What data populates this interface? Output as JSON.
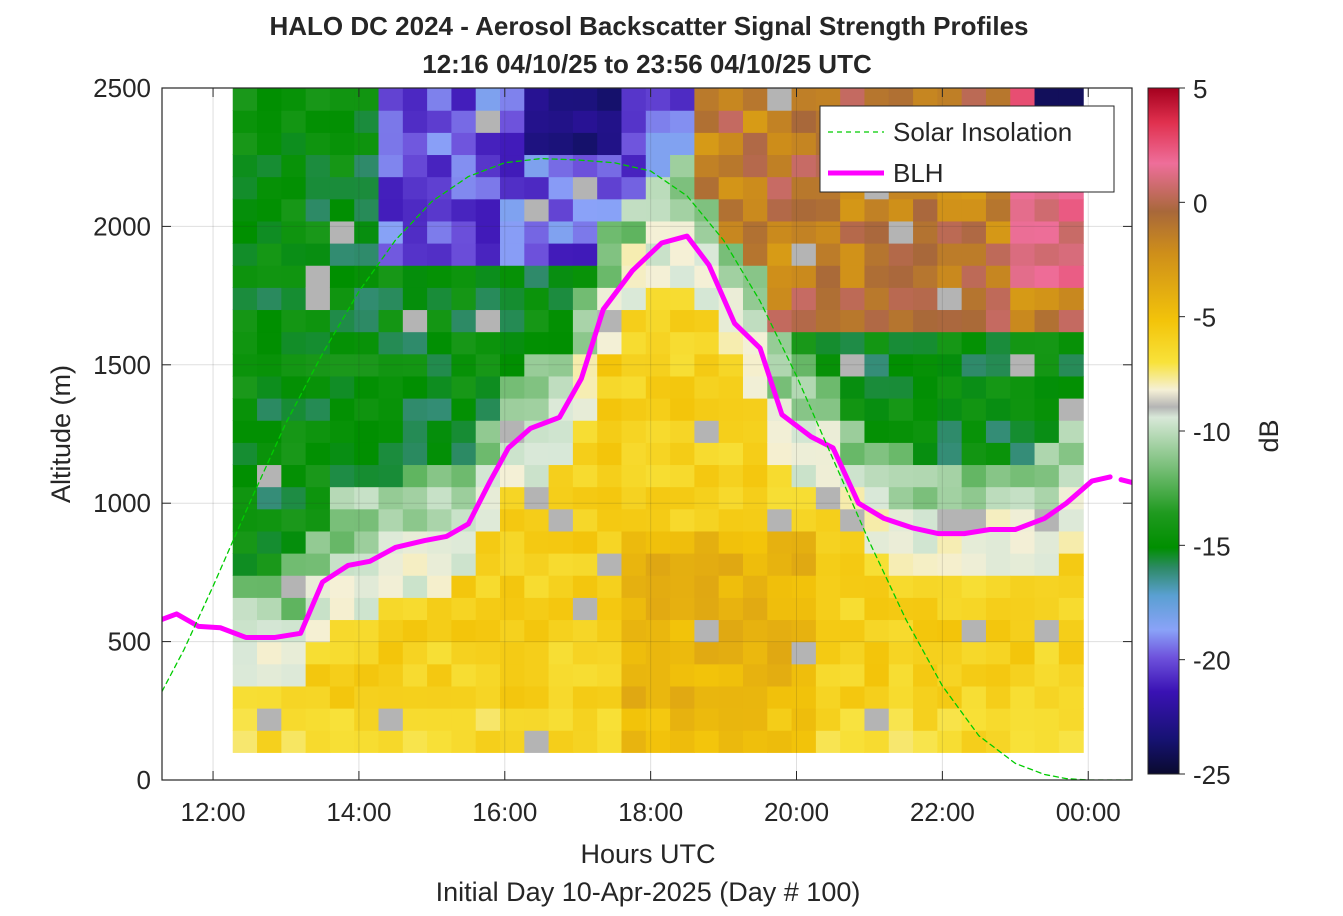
{
  "chart_data": {
    "type": "heatmap",
    "title_line1": "HALO DC 2024 - Aerosol Backscatter Signal Strength Profiles",
    "title_line2": "12:16 04/10/25 to 23:56 04/10/25  UTC",
    "xlabel": "Hours UTC",
    "sublabel": "Initial Day 10-Apr-2025 (Day # 100)",
    "ylabel": "Altitude (m)",
    "colorbar_label": "dB",
    "xlim": [
      11.3,
      24.6
    ],
    "ylim": [
      0,
      2500
    ],
    "x_ticks": [
      12,
      14,
      16,
      18,
      20,
      22,
      24
    ],
    "x_tick_labels": [
      "12:00",
      "14:00",
      "16:00",
      "18:00",
      "20:00",
      "22:00",
      "00:00"
    ],
    "y_ticks": [
      0,
      500,
      1000,
      1500,
      2000,
      2500
    ],
    "y_tick_labels": [
      "0",
      "500",
      "1000",
      "1500",
      "2000",
      "2500"
    ],
    "clim": [
      -25,
      5
    ],
    "colorbar_ticks": [
      5,
      0,
      -5,
      -10,
      -15,
      -20,
      -25
    ],
    "colorbar_tick_labels": [
      "5",
      "0",
      "-5",
      "-10",
      "-15",
      "-20",
      "-25"
    ],
    "grid": true,
    "legend_position": "top-right",
    "legend": [
      "Solar Insolation",
      "BLH"
    ],
    "colors": {
      "blh": "#ff00ff",
      "solar": "#00cc00"
    },
    "heatmap": {
      "time_start": 12.27,
      "time_end": 23.93,
      "time_bins": 35,
      "alt_bottom": 100,
      "alt_top": 2500,
      "alt_bins": 30,
      "nodata_color": "#b4b4b4",
      "description": "Backscatter dB: near-surface layer about -5 to -7 dB (yellow/orange); boundary-layer top near -10 dB; free troposphere about -15 dB (green) with pockets of -20 to -23 dB (blue/purple) above about 1900 m around 15:00-18:30 UTC; residual-layer aerosol about -2 to 3 dB (brown/red) above about 1700 m after 19:00 UTC."
    },
    "series": [
      {
        "name": "BLH",
        "x": [
          11.3,
          11.5,
          11.8,
          12.1,
          12.45,
          12.85,
          13.2,
          13.5,
          13.85,
          14.15,
          14.5,
          14.9,
          15.2,
          15.5,
          15.8,
          16.05,
          16.35,
          16.75,
          17.05,
          17.35,
          17.75,
          18.15,
          18.5,
          18.8,
          19.15,
          19.5,
          19.8,
          20.2,
          20.5,
          20.85,
          21.2,
          21.6,
          21.95,
          22.3,
          22.65,
          23.0,
          23.4,
          23.7,
          24.05,
          24.3
        ],
        "y": [
          580,
          600,
          555,
          550,
          515,
          515,
          530,
          715,
          775,
          790,
          840,
          865,
          880,
          925,
          1080,
          1200,
          1270,
          1310,
          1450,
          1700,
          1840,
          1940,
          1965,
          1860,
          1650,
          1560,
          1320,
          1240,
          1200,
          1000,
          945,
          910,
          890,
          890,
          905,
          905,
          945,
          1000,
          1080,
          1095
        ]
      },
      {
        "name": "BLH",
        "x": [
          24.45,
          24.6
        ],
        "y": [
          1085,
          1075
        ]
      },
      {
        "name": "Solar Insolation",
        "x": [
          11.3,
          11.6,
          12.0,
          12.5,
          13.0,
          13.5,
          14.0,
          14.5,
          15.0,
          15.5,
          16.0,
          16.5,
          17.0,
          17.5,
          18.0,
          18.5,
          19.0,
          19.5,
          20.0,
          20.5,
          21.0,
          21.5,
          22.0,
          22.5,
          23.0,
          23.4,
          23.7,
          24.0,
          24.2,
          24.6
        ],
        "y": [
          320,
          470,
          700,
          1000,
          1290,
          1540,
          1765,
          1950,
          2090,
          2180,
          2230,
          2245,
          2240,
          2230,
          2200,
          2110,
          1950,
          1730,
          1460,
          1160,
          860,
          580,
          340,
          160,
          60,
          20,
          5,
          0,
          0,
          0
        ]
      }
    ]
  }
}
